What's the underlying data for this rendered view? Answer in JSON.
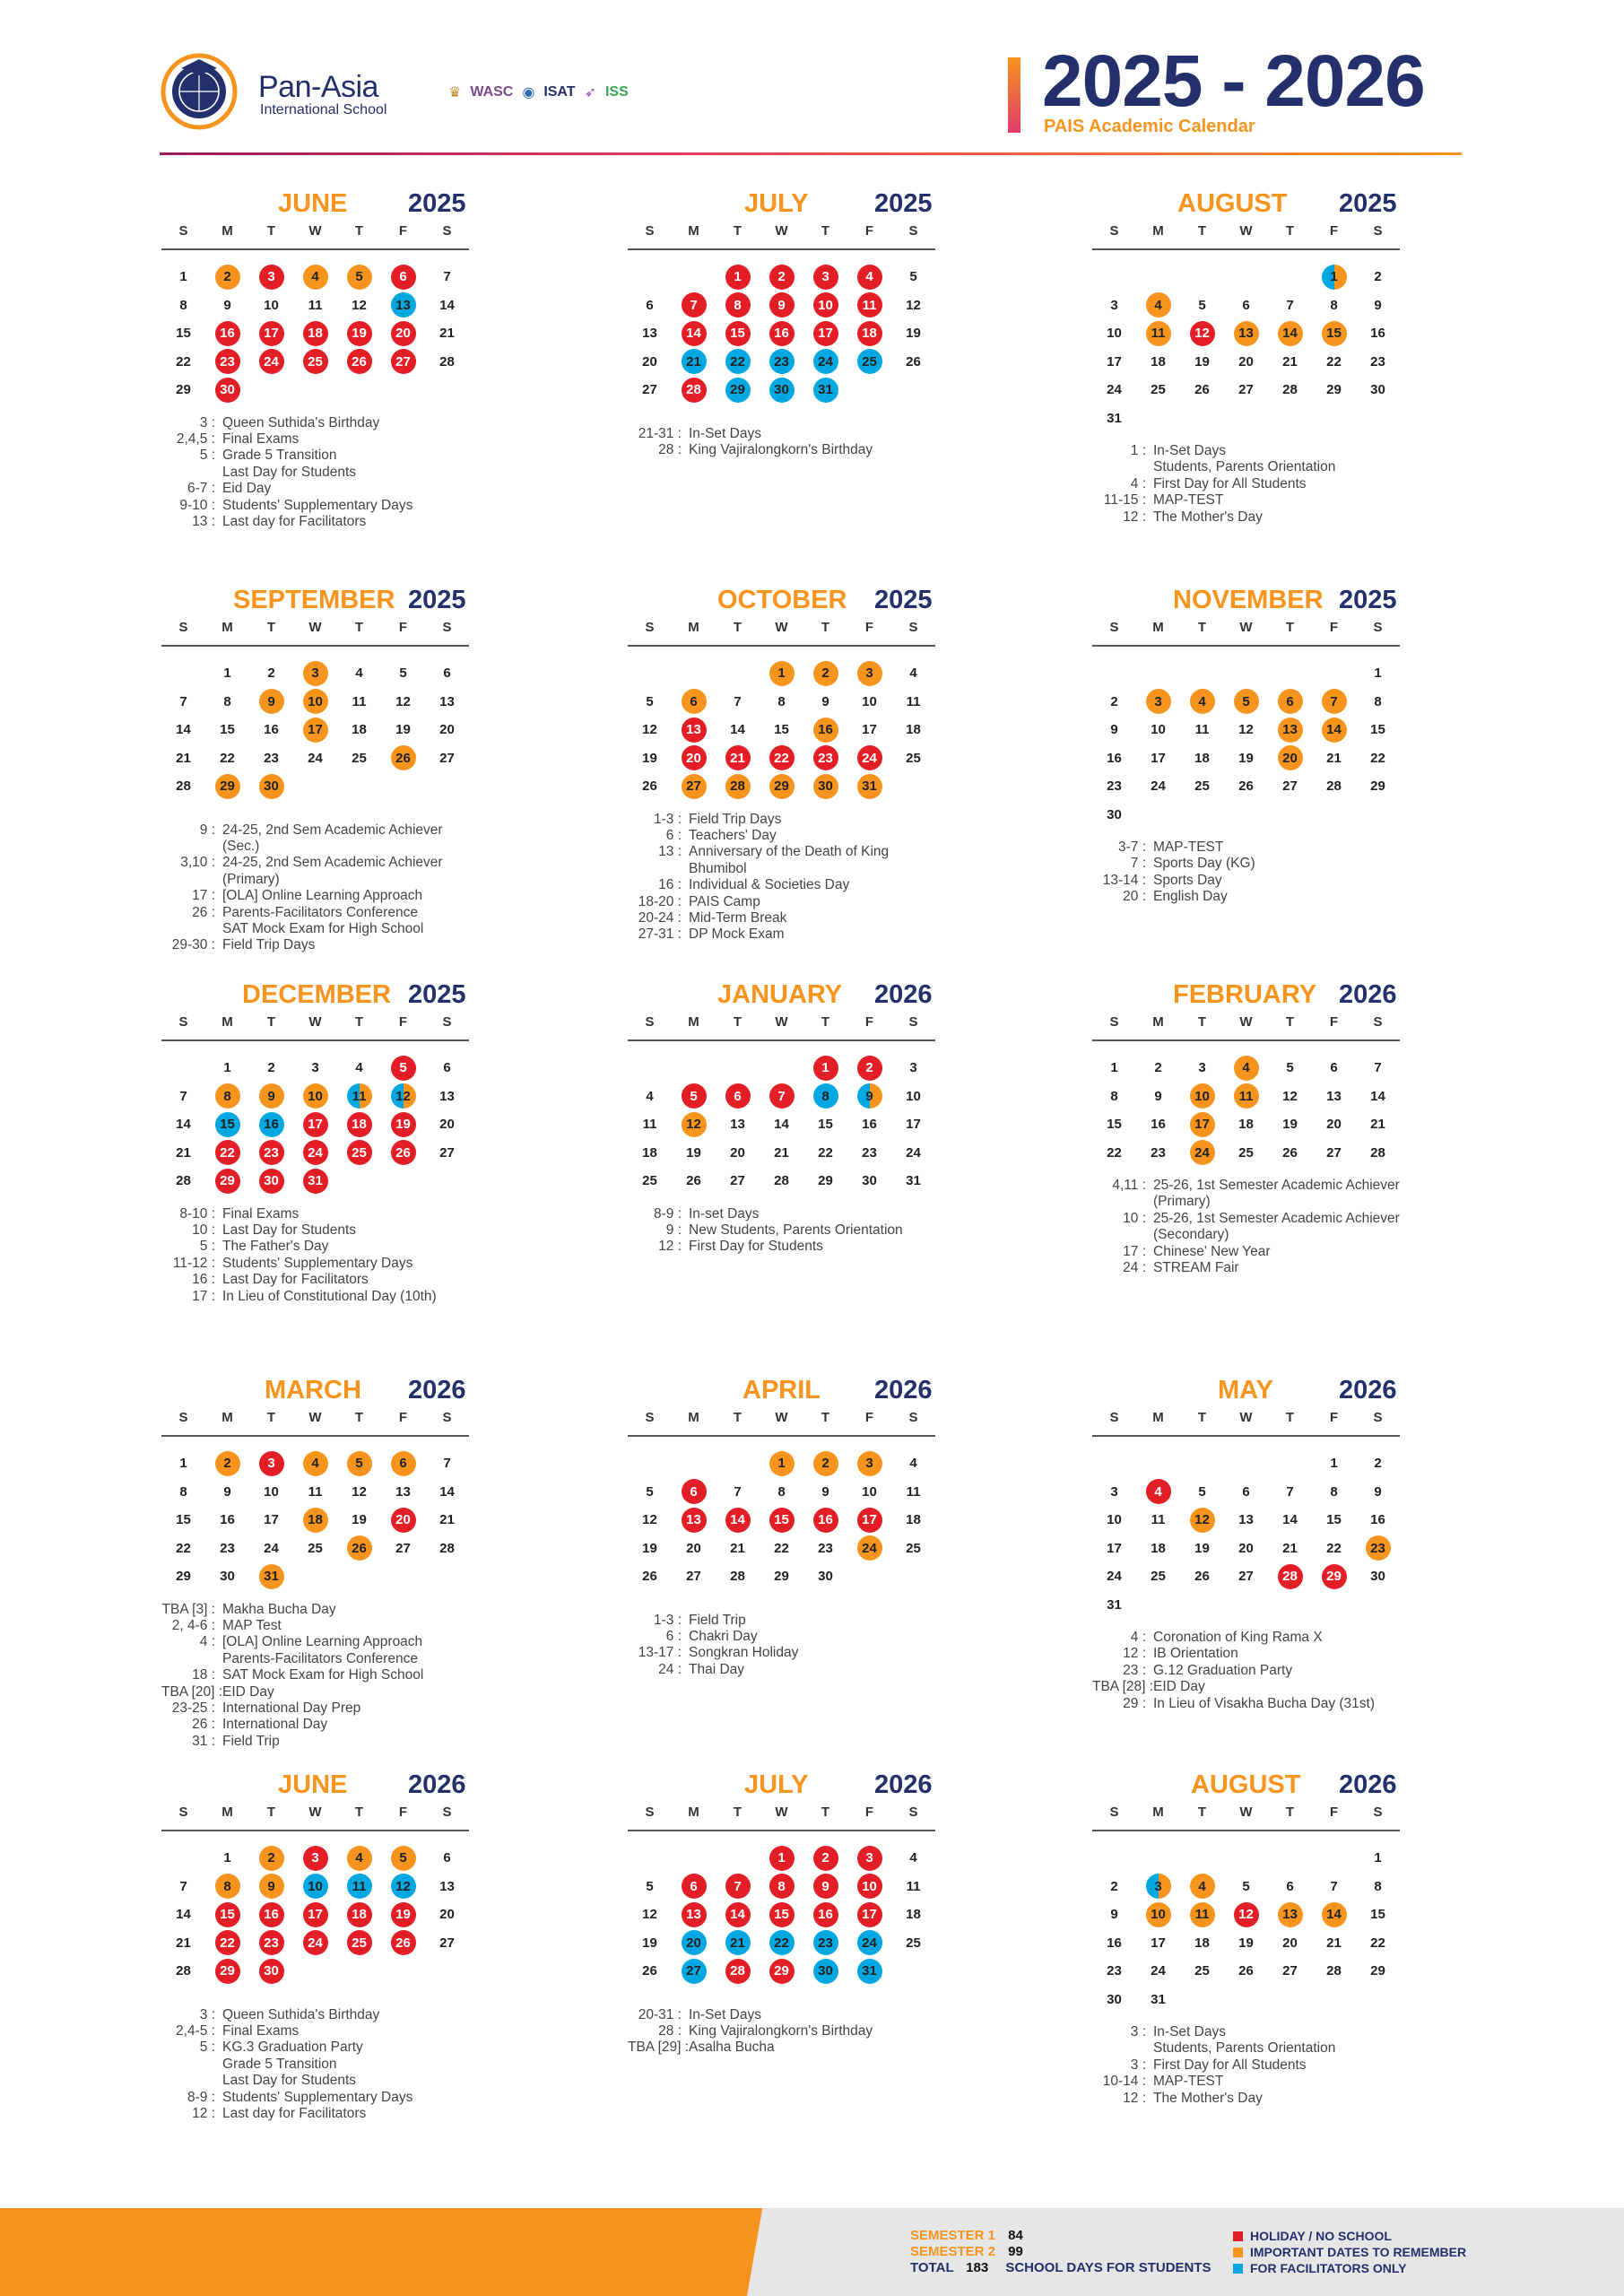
{
  "header": {
    "school_name": "Pan-Asia",
    "school_subtitle": "International School",
    "accreditations": [
      "WASC",
      "ISAT",
      "ISS"
    ],
    "year_title": "2025 - 2026",
    "subtitle": "PAIS Academic Calendar"
  },
  "weekday_labels": [
    "S",
    "M",
    "T",
    "W",
    "T",
    "F",
    "S"
  ],
  "colors": {
    "holiday": "#e41e26",
    "important": "#f7941d",
    "facilitator": "#00a7e1",
    "navy": "#24306b"
  },
  "months": [
    {
      "name": "JUNE",
      "year": "2025",
      "start": 0,
      "days": 30,
      "marks": {
        "2": "important",
        "3": "holiday",
        "4": "important",
        "5": "important",
        "6": "holiday",
        "13": "facilitator",
        "16": "holiday",
        "17": "holiday",
        "18": "holiday",
        "19": "holiday",
        "20": "holiday",
        "23": "holiday",
        "24": "holiday",
        "25": "holiday",
        "26": "holiday",
        "27": "holiday",
        "30": "holiday"
      },
      "events": [
        {
          "d": "3 :",
          "t": "Queen Suthida's Birthday"
        },
        {
          "d": "2,4,5 :",
          "t": "Final Exams"
        },
        {
          "d": "5 :",
          "t": "Grade 5 Transition"
        },
        {
          "d": "",
          "t": "Last Day for Students"
        },
        {
          "d": "6-7 :",
          "t": "Eid Day"
        },
        {
          "d": "9-10 :",
          "t": "Students' Supplementary Days"
        },
        {
          "d": "13 :",
          "t": "Last day for Facilitators"
        }
      ]
    },
    {
      "name": "JULY",
      "year": "2025",
      "start": 2,
      "days": 31,
      "marks": {
        "1": "holiday",
        "2": "holiday",
        "3": "holiday",
        "4": "holiday",
        "7": "holiday",
        "8": "holiday",
        "9": "holiday",
        "10": "holiday",
        "11": "holiday",
        "14": "holiday",
        "15": "holiday",
        "16": "holiday",
        "17": "holiday",
        "18": "holiday",
        "21": "facilitator",
        "22": "facilitator",
        "23": "facilitator",
        "24": "facilitator",
        "25": "facilitator",
        "28": "holiday",
        "29": "facilitator",
        "30": "facilitator",
        "31": "facilitator"
      },
      "events": [
        {
          "d": "",
          "t": ""
        },
        {
          "d": "21-31 :",
          "t": "In-Set Days"
        },
        {
          "d": "28 :",
          "t": "King Vajiralongkorn's Birthday"
        }
      ]
    },
    {
      "name": "AUGUST",
      "year": "2025",
      "start": 5,
      "days": 31,
      "marks": {
        "1": "split",
        "4": "important",
        "11": "important",
        "12": "holiday",
        "13": "important",
        "14": "important",
        "15": "important"
      },
      "events": [
        {
          "d": "1 :",
          "t": "In-Set Days"
        },
        {
          "d": "",
          "t": "Students, Parents Orientation"
        },
        {
          "d": "4 :",
          "t": "First Day for All Students"
        },
        {
          "d": "11-15 :",
          "t": "MAP-TEST"
        },
        {
          "d": "12 :",
          "t": "The Mother's Day"
        }
      ]
    },
    {
      "name": "SEPTEMBER",
      "year": "2025",
      "start": 1,
      "days": 30,
      "marks": {
        "3": "important",
        "9": "important",
        "10": "important",
        "17": "important",
        "26": "important",
        "29": "important",
        "30": "important"
      },
      "events": [
        {
          "d": "",
          "t": ""
        },
        {
          "d": "9 :",
          "t": "24-25, 2nd Sem Academic Achiever (Sec.)"
        },
        {
          "d": "3,10 :",
          "t": "24-25, 2nd Sem Academic Achiever (Primary)"
        },
        {
          "d": "17 :",
          "t": "[OLA] Online Learning Approach"
        },
        {
          "d": "26 :",
          "t": "Parents-Facilitators Conference"
        },
        {
          "d": "",
          "t": "SAT Mock Exam for High School"
        },
        {
          "d": "29-30 :",
          "t": "Field Trip Days"
        }
      ]
    },
    {
      "name": "OCTOBER",
      "year": "2025",
      "start": 3,
      "days": 31,
      "marks": {
        "1": "important",
        "2": "important",
        "3": "important",
        "6": "important",
        "13": "holiday",
        "16": "important",
        "20": "holiday",
        "21": "holiday",
        "22": "holiday",
        "23": "holiday",
        "24": "holiday",
        "27": "important",
        "28": "important",
        "29": "important",
        "30": "important",
        "31": "important"
      },
      "events": [
        {
          "d": "1-3 :",
          "t": "Field Trip Days"
        },
        {
          "d": "6 :",
          "t": "Teachers' Day"
        },
        {
          "d": "13 :",
          "t": "Anniversary of the Death of King Bhumibol"
        },
        {
          "d": "16 :",
          "t": "Individual & Societies Day"
        },
        {
          "d": "18-20 :",
          "t": "PAIS Camp"
        },
        {
          "d": "20-24 :",
          "t": "Mid-Term Break"
        },
        {
          "d": "27-31 :",
          "t": "DP Mock Exam"
        }
      ]
    },
    {
      "name": "NOVEMBER",
      "year": "2025",
      "start": 6,
      "days": 30,
      "marks": {
        "3": "important",
        "4": "important",
        "5": "important",
        "6": "important",
        "7": "important",
        "13": "important",
        "14": "important",
        "20": "important"
      },
      "events": [
        {
          "d": "3-7 :",
          "t": "MAP-TEST"
        },
        {
          "d": "7 :",
          "t": "Sports Day (KG)"
        },
        {
          "d": "13-14 :",
          "t": "Sports Day"
        },
        {
          "d": "20 :",
          "t": "English Day"
        }
      ]
    },
    {
      "name": "DECEMBER",
      "year": "2025",
      "start": 1,
      "days": 31,
      "marks": {
        "5": "holiday",
        "8": "important",
        "9": "important",
        "10": "important",
        "11": "split",
        "12": "split",
        "15": "facilitator",
        "16": "facilitator",
        "17": "holiday",
        "18": "holiday",
        "19": "holiday",
        "22": "holiday",
        "23": "holiday",
        "24": "holiday",
        "25": "holiday",
        "26": "holiday",
        "29": "holiday",
        "30": "holiday",
        "31": "holiday"
      },
      "events": [
        {
          "d": "8-10 :",
          "t": "Final Exams"
        },
        {
          "d": "10 :",
          "t": "Last Day for Students"
        },
        {
          "d": "5 :",
          "t": "The Father's Day"
        },
        {
          "d": "11-12 :",
          "t": "Students' Supplementary Days"
        },
        {
          "d": "16 :",
          "t": "Last Day for Facilitators"
        },
        {
          "d": "17 :",
          "t": "In Lieu of Constitutional Day (10th)"
        }
      ]
    },
    {
      "name": "JANUARY",
      "year": "2026",
      "start": 4,
      "days": 31,
      "marks": {
        "1": "holiday",
        "2": "holiday",
        "5": "holiday",
        "6": "holiday",
        "7": "holiday",
        "8": "facilitator",
        "9": "split",
        "12": "important"
      },
      "events": [
        {
          "d": "8-9 :",
          "t": "In-set Days"
        },
        {
          "d": "9 :",
          "t": "New Students, Parents Orientation"
        },
        {
          "d": "12 :",
          "t": "First Day for Students"
        }
      ]
    },
    {
      "name": "FEBRUARY",
      "year": "2026",
      "start": 0,
      "days": 28,
      "marks": {
        "4": "important",
        "10": "important",
        "11": "important",
        "17": "important",
        "24": "important"
      },
      "events": [
        {
          "d": "4,11 :",
          "t": "25-26, 1st Semester Academic Achiever (Primary)"
        },
        {
          "d": "10 :",
          "t": "25-26, 1st Semester Academic Achiever (Secondary)"
        },
        {
          "d": "17 :",
          "t": "Chinese' New Year"
        },
        {
          "d": "24 :",
          "t": "STREAM Fair"
        }
      ]
    },
    {
      "name": "MARCH",
      "year": "2026",
      "start": 0,
      "days": 31,
      "marks": {
        "2": "important",
        "3": "holiday",
        "4": "important",
        "5": "important",
        "6": "important",
        "18": "important",
        "20": "holiday",
        "26": "important",
        "31": "important"
      },
      "events": [
        {
          "d": "TBA [3] :",
          "t": "Makha Bucha Day"
        },
        {
          "d": "2, 4-6 :",
          "t": "MAP Test"
        },
        {
          "d": "4 :",
          "t": "[OLA] Online Learning Approach"
        },
        {
          "d": "",
          "t": "Parents-Facilitators Conference"
        },
        {
          "d": "18 :",
          "t": "SAT Mock Exam for High School"
        },
        {
          "d": "TBA [20] :",
          "t": "EID Day"
        },
        {
          "d": "23-25 :",
          "t": "International Day Prep"
        },
        {
          "d": "26 :",
          "t": "International Day"
        },
        {
          "d": "31 :",
          "t": "Field Trip"
        }
      ]
    },
    {
      "name": "APRIL",
      "year": "2026",
      "start": 3,
      "days": 30,
      "marks": {
        "1": "important",
        "2": "important",
        "3": "important",
        "6": "holiday",
        "13": "holiday",
        "14": "holiday",
        "15": "holiday",
        "16": "holiday",
        "17": "holiday",
        "24": "important"
      },
      "events": [
        {
          "d": "",
          "t": ""
        },
        {
          "d": "1-3 :",
          "t": "Field Trip"
        },
        {
          "d": "6 :",
          "t": "Chakri Day"
        },
        {
          "d": "13-17 :",
          "t": "Songkran Holiday"
        },
        {
          "d": "24 :",
          "t": "Thai Day"
        }
      ]
    },
    {
      "name": "MAY",
      "year": "2026",
      "start": 5,
      "days": 31,
      "marks": {
        "4": "holiday",
        "12": "important",
        "23": "important",
        "28": "holiday",
        "29": "holiday"
      },
      "events": [
        {
          "d": "4 :",
          "t": "Coronation of King Rama X"
        },
        {
          "d": "12 :",
          "t": "IB Orientation"
        },
        {
          "d": "23 :",
          "t": "G.12 Graduation Party"
        },
        {
          "d": "TBA [28] :",
          "t": "EID Day"
        },
        {
          "d": "29 :",
          "t": "In Lieu of Visakha Bucha Day (31st)"
        }
      ]
    },
    {
      "name": "JUNE",
      "year": "2026",
      "start": 1,
      "days": 30,
      "marks": {
        "2": "important",
        "3": "holiday",
        "4": "important",
        "5": "important",
        "8": "important",
        "9": "important",
        "10": "facilitator",
        "11": "facilitator",
        "12": "facilitator",
        "15": "holiday",
        "16": "holiday",
        "17": "holiday",
        "18": "holiday",
        "19": "holiday",
        "22": "holiday",
        "23": "holiday",
        "24": "holiday",
        "25": "holiday",
        "26": "holiday",
        "29": "holiday",
        "30": "holiday"
      },
      "events": [
        {
          "d": "",
          "t": ""
        },
        {
          "d": "3 :",
          "t": "Queen Suthida's Birthday"
        },
        {
          "d": "2,4-5 :",
          "t": "Final Exams"
        },
        {
          "d": "5 :",
          "t": "KG.3 Graduation Party"
        },
        {
          "d": "",
          "t": "Grade 5 Transition"
        },
        {
          "d": "",
          "t": "Last Day for Students"
        },
        {
          "d": "8-9 :",
          "t": "Students' Supplementary Days"
        },
        {
          "d": "12 :",
          "t": "Last day for Facilitators"
        }
      ]
    },
    {
      "name": "JULY",
      "year": "2026",
      "start": 3,
      "days": 31,
      "marks": {
        "1": "holiday",
        "2": "holiday",
        "3": "holiday",
        "6": "holiday",
        "7": "holiday",
        "8": "holiday",
        "9": "holiday",
        "10": "holiday",
        "13": "holiday",
        "14": "holiday",
        "15": "holiday",
        "16": "holiday",
        "17": "holiday",
        "20": "facilitator",
        "21": "facilitator",
        "22": "facilitator",
        "23": "facilitator",
        "24": "facilitator",
        "27": "facilitator",
        "28": "holiday",
        "29": "holiday",
        "30": "facilitator",
        "31": "facilitator"
      },
      "events": [
        {
          "d": "",
          "t": ""
        },
        {
          "d": "20-31 :",
          "t": "In-Set Days"
        },
        {
          "d": "28 :",
          "t": "King Vajiralongkorn's Birthday"
        },
        {
          "d": "TBA [29] :",
          "t": "Asalha Bucha"
        }
      ]
    },
    {
      "name": "AUGUST",
      "year": "2026",
      "start": 6,
      "days": 31,
      "marks": {
        "3": "split",
        "4": "important",
        "10": "important",
        "11": "important",
        "12": "holiday",
        "13": "important",
        "14": "important"
      },
      "events": [
        {
          "d": "3 :",
          "t": "In-Set Days"
        },
        {
          "d": "",
          "t": "Students, Parents Orientation"
        },
        {
          "d": "3 :",
          "t": "First Day for All Students"
        },
        {
          "d": "10-14 :",
          "t": "MAP-TEST"
        },
        {
          "d": "12 :",
          "t": "The Mother's Day"
        }
      ]
    }
  ],
  "footer": {
    "semester1_label": "SEMESTER 1",
    "semester1_value": "84",
    "semester2_label": "SEMESTER 2",
    "semester2_value": "99",
    "total_label": "TOTAL",
    "total_value": "183",
    "total_suffix": "SCHOOL DAYS FOR STUDENTS",
    "legend": [
      {
        "color": "#e41e26",
        "label": "HOLIDAY / NO SCHOOL"
      },
      {
        "color": "#f7941d",
        "label": "IMPORTANT DATES TO REMEMBER"
      },
      {
        "color": "#00a7e1",
        "label": "FOR FACILITATORS ONLY"
      }
    ]
  }
}
